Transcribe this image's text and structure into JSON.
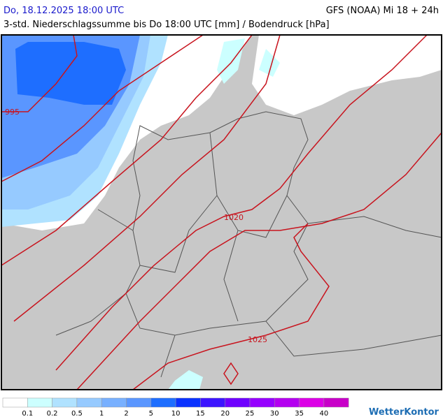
{
  "header": {
    "title": "Do, 18.12.2025 18:00 UTC",
    "model": "GFS (NOAA) Mi 18 + 24h",
    "subtitle": "3-std. Niederschlagssumme bis Do 18:00 UTC [mm] / Bodendruck [hPa]"
  },
  "map": {
    "isobar_labels": [
      "995",
      "1020",
      "1025"
    ]
  },
  "legend": {
    "colors": [
      "#ffffff",
      "#ccffff",
      "#b0e2ff",
      "#96caff",
      "#78b0ff",
      "#5a96ff",
      "#1e6eff",
      "#0a32ff",
      "#3c14ff",
      "#6e00ff",
      "#9600ff",
      "#b400f0",
      "#dc00e6",
      "#c800c8"
    ],
    "labels": [
      "0.1",
      "0.2",
      "0.5",
      "1",
      "2",
      "5",
      "10",
      "15",
      "20",
      "25",
      "30",
      "35",
      "40"
    ]
  },
  "brand": "WetterKontor"
}
